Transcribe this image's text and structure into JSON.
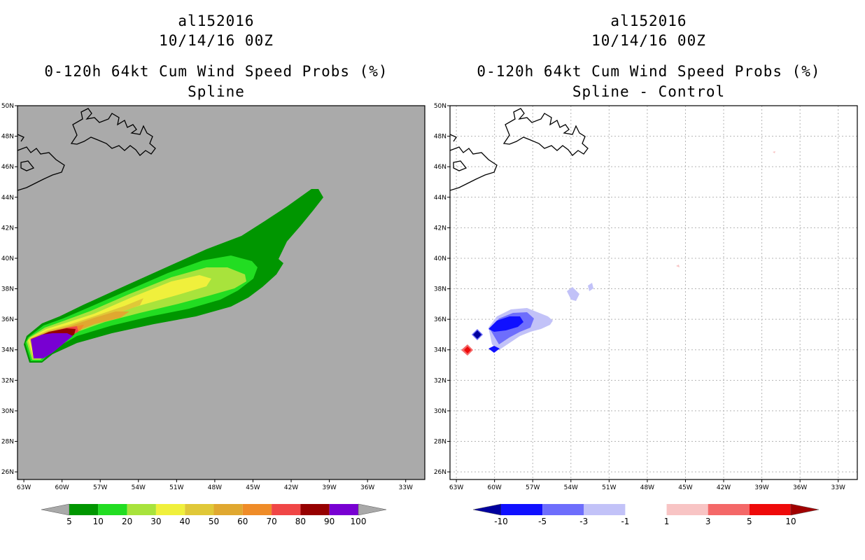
{
  "left": {
    "storm_id": "al152016",
    "datetime": "10/14/16 00Z",
    "product": "0-120h 64kt Cum Wind Speed Probs (%)",
    "subtitle": "Spline",
    "colorbar": {
      "labels": [
        "5",
        "10",
        "20",
        "30",
        "40",
        "50",
        "60",
        "70",
        "80",
        "90",
        "100"
      ],
      "colors": [
        "#a9a9a9",
        "#009600",
        "#22dd22",
        "#a8e33c",
        "#f0f03c",
        "#e0c838",
        "#e0a830",
        "#ef8c28",
        "#f04646",
        "#960000",
        "#7800d2",
        "#a9a9a9"
      ]
    }
  },
  "right": {
    "storm_id": "al152016",
    "datetime": "10/14/16 00Z",
    "product": "0-120h 64kt Cum Wind Speed Probs (%)",
    "subtitle": "Spline - Control",
    "colorbar": {
      "labels": [
        "-10",
        "-5",
        "-3",
        "-1",
        "1",
        "3",
        "5",
        "10"
      ],
      "colors": [
        "#00009e",
        "#1010ff",
        "#6e6efc",
        "#c2c2f8",
        "#ffffff",
        "#f8c4c4",
        "#f46868",
        "#ee0a0a",
        "#a00000"
      ]
    }
  },
  "map": {
    "lat_labels": [
      "50N",
      "48N",
      "46N",
      "44N",
      "42N",
      "40N",
      "38N",
      "36N",
      "34N",
      "32N",
      "30N",
      "28N",
      "26N"
    ],
    "lon_labels": [
      "63W",
      "60W",
      "57W",
      "54W",
      "51W",
      "48W",
      "45W",
      "42W",
      "39W",
      "36W",
      "33W"
    ],
    "lon_range": [
      -63.5,
      -31.5
    ],
    "lat_range": [
      25.5,
      50
    ]
  },
  "colors": {
    "background_field": "#aaaaaa",
    "grid": "#b4b4b4"
  }
}
